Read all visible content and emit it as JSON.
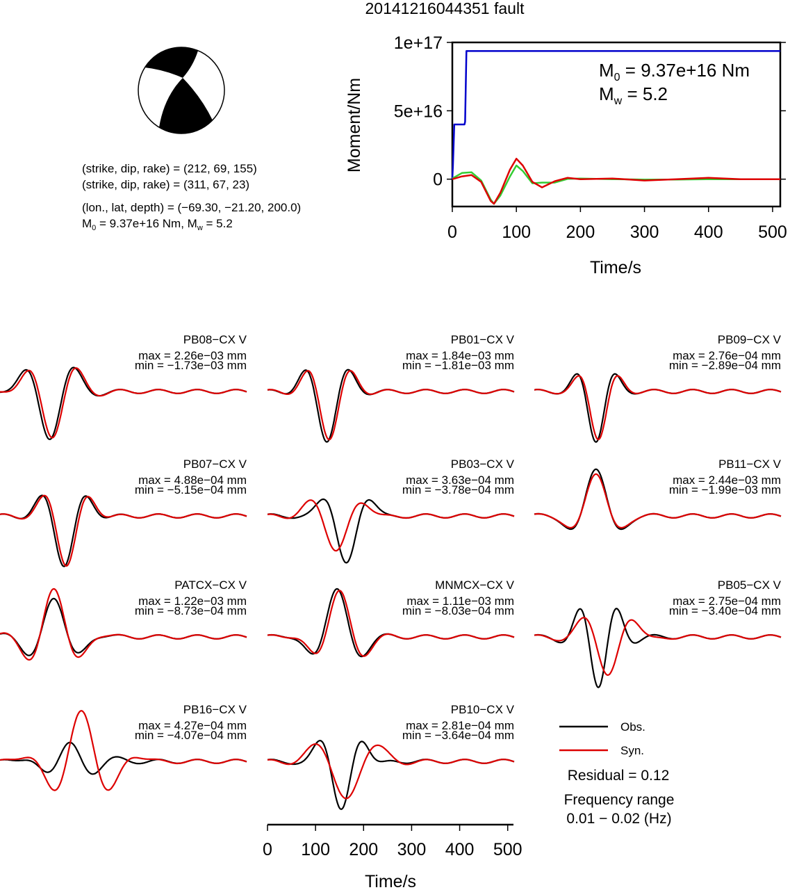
{
  "title": "20141216044351 fault",
  "beachball": {
    "fill_color": "#000000"
  },
  "info": {
    "line1": "(strike, dip, rake) = (212, 69, 155)",
    "line2": "(strike, dip, rake) = (311, 67, 23)",
    "line3": "(lon., lat, depth) = (−69.30, −21.20, 200.0)",
    "line4_m0": "M",
    "line4_m0_sub": "0",
    "line4_mid": " = 9.37e+16 Nm, M",
    "line4_mw_sub": "w",
    "line4_end": " = 5.2"
  },
  "moment_plot": {
    "ylabel": "Moment/Nm",
    "xlabel": "Time/s",
    "m0_prefix": "M",
    "m0_sub": "0",
    "m0_value": " = 9.37e+16 Nm",
    "mw_prefix": "M",
    "mw_sub": "w",
    "mw_value": " = 5.2",
    "yticks": [
      "1e+17",
      "5e+16",
      "0"
    ],
    "xticks": [
      "0",
      "100",
      "200",
      "300",
      "400",
      "500"
    ]
  },
  "legend": {
    "obs_label": "Obs.",
    "syn_label": "Syn.",
    "residual": "Residual = 0.12",
    "freq_title": "Frequency range",
    "freq_value": "0.01 − 0.02 (Hz)"
  },
  "waveform_axis": {
    "xlabel": "Time/s",
    "xticks": [
      "0",
      "100",
      "200",
      "300",
      "400",
      "500"
    ]
  },
  "chart_data": [
    {
      "type": "line",
      "name": "moment-rate",
      "xlabel": "Time/s",
      "ylabel": "Moment/Nm",
      "xlim": [
        0,
        512
      ],
      "ylim": [
        -2e+16,
        1e+17
      ],
      "series": [
        {
          "name": "cumulative moment",
          "color": "#0000cc",
          "x": [
            0,
            1,
            3,
            19,
            20,
            22,
            25,
            512
          ],
          "values": [
            0,
            1e+16,
            4e+16,
            4e+16,
            4.2e+16,
            9.37e+16,
            9.37e+16,
            9.37e+16
          ]
        },
        {
          "name": "moment rate A",
          "color": "#33cc33",
          "x": [
            0,
            15,
            30,
            45,
            60,
            65,
            75,
            90,
            100,
            110,
            125,
            140,
            160,
            180,
            200,
            250,
            300,
            350,
            400,
            450,
            512
          ],
          "values": [
            500000000000000.0,
            4500000000000000.0,
            5000000000000000.0,
            -1000000000000000.0,
            -1.5e+16,
            -1.8e+16,
            -1.2e+16,
            2000000000000000.0,
            1e+16,
            6000000000000000.0,
            -3000000000000000.0,
            -2500000000000000.0,
            -2500000000000000.0,
            200000000000000.0,
            500000000000000.0,
            0,
            -300000000000000.0,
            -300000000000000.0,
            0,
            0,
            0
          ]
        },
        {
          "name": "moment rate B",
          "color": "#dd0000",
          "x": [
            0,
            15,
            30,
            45,
            60,
            65,
            75,
            90,
            100,
            110,
            125,
            140,
            160,
            180,
            200,
            250,
            300,
            350,
            400,
            450,
            512
          ],
          "values": [
            0,
            2000000000000000.0,
            3000000000000000.0,
            -2000000000000000.0,
            -1.6e+16,
            -1.8e+16,
            -1e+16,
            7000000000000000.0,
            1.5e+16,
            1e+16,
            -2000000000000000.0,
            -6000000000000000.0,
            -1500000000000000.0,
            1000000000000000.0,
            0,
            500000000000000.0,
            -1000000000000000.0,
            0,
            1000000000000000.0,
            0,
            0
          ]
        }
      ]
    },
    {
      "type": "line",
      "station": "PB08−CX V",
      "max": "max = 2.26e−03 mm",
      "min": "min = −1.73e−03 mm"
    },
    {
      "type": "line",
      "station": "PB01−CX V",
      "max": "max = 1.84e−03 mm",
      "min": "min = −1.81e−03 mm"
    },
    {
      "type": "line",
      "station": "PB09−CX V",
      "max": "max = 2.76e−04 mm",
      "min": "min = −2.89e−04 mm"
    },
    {
      "type": "line",
      "station": "PB07−CX V",
      "max": "max = 4.88e−04 mm",
      "min": "min = −5.15e−04 mm"
    },
    {
      "type": "line",
      "station": "PB03−CX V",
      "max": "max = 3.63e−04 mm",
      "min": "min = −3.78e−04 mm"
    },
    {
      "type": "line",
      "station": "PB11−CX V",
      "max": "max = 2.44e−03 mm",
      "min": "min = −1.99e−03 mm"
    },
    {
      "type": "line",
      "station": "PATCX−CX V",
      "max": "max = 1.22e−03 mm",
      "min": "min = −8.73e−04 mm"
    },
    {
      "type": "line",
      "station": "MNMCX−CX V",
      "max": "max = 1.11e−03 mm",
      "min": "min = −8.03e−04 mm"
    },
    {
      "type": "line",
      "station": "PB05−CX V",
      "max": "max = 2.75e−04 mm",
      "min": "min = −3.40e−04 mm"
    },
    {
      "type": "line",
      "station": "PB16−CX V",
      "max": "max = 4.27e−04 mm",
      "min": "min = −4.07e−04 mm"
    },
    {
      "type": "line",
      "station": "PB10−CX V",
      "max": "max = 2.81e−04 mm",
      "min": "min = −3.64e−04 mm"
    }
  ],
  "colors": {
    "obs": "#000000",
    "syn": "#dd0000",
    "moment": "#0000cc",
    "rate_a": "#33cc33",
    "rate_b": "#dd0000"
  }
}
